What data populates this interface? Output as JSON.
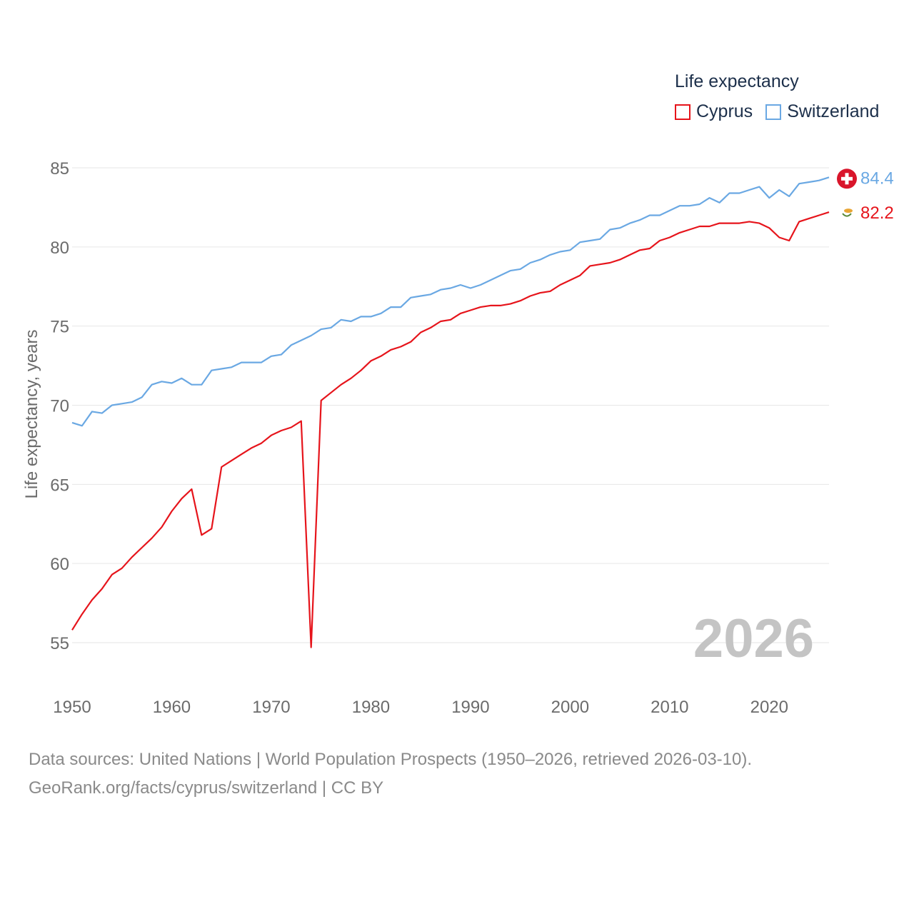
{
  "legend": {
    "title": "Life expectancy",
    "items": [
      {
        "name": "Cyprus",
        "color": "#e6141b"
      },
      {
        "name": "Switzerland",
        "color": "#6aa8e3"
      }
    ]
  },
  "footer": {
    "line1": "Data sources: United Nations | World Population Prospects (1950–2026, retrieved 2026-03-10).",
    "line2": "GeoRank.org/facts/cyprus/switzerland | CC BY"
  },
  "chart_data": {
    "type": "line",
    "title": "Life expectancy",
    "xlabel": "",
    "ylabel": "Life expectancy, years",
    "xlim": [
      1950,
      2026
    ],
    "ylim": [
      53,
      86.5
    ],
    "xticks": [
      1950,
      1960,
      1970,
      1980,
      1990,
      2000,
      2010,
      2020
    ],
    "yticks": [
      55,
      60,
      65,
      70,
      75,
      80,
      85
    ],
    "grid": true,
    "legend_position": "top-right",
    "year_label": "2026",
    "x": [
      1950,
      1951,
      1952,
      1953,
      1954,
      1955,
      1956,
      1957,
      1958,
      1959,
      1960,
      1961,
      1962,
      1963,
      1964,
      1965,
      1966,
      1967,
      1968,
      1969,
      1970,
      1971,
      1972,
      1973,
      1974,
      1975,
      1976,
      1977,
      1978,
      1979,
      1980,
      1981,
      1982,
      1983,
      1984,
      1985,
      1986,
      1987,
      1988,
      1989,
      1990,
      1991,
      1992,
      1993,
      1994,
      1995,
      1996,
      1997,
      1998,
      1999,
      2000,
      2001,
      2002,
      2003,
      2004,
      2005,
      2006,
      2007,
      2008,
      2009,
      2010,
      2011,
      2012,
      2013,
      2014,
      2015,
      2016,
      2017,
      2018,
      2019,
      2020,
      2021,
      2022,
      2023,
      2024,
      2025,
      2026
    ],
    "series": [
      {
        "name": "Cyprus",
        "color": "#e6141b",
        "end_label": "82.2",
        "flag": "cyprus-flag",
        "values": [
          55.8,
          56.8,
          57.7,
          58.4,
          59.3,
          59.7,
          60.4,
          61.0,
          61.6,
          62.3,
          63.3,
          64.1,
          64.7,
          61.8,
          62.2,
          66.1,
          66.5,
          66.9,
          67.3,
          67.6,
          68.1,
          68.4,
          68.6,
          69.0,
          54.7,
          70.3,
          70.8,
          71.3,
          71.7,
          72.2,
          72.8,
          73.1,
          73.5,
          73.7,
          74.0,
          74.6,
          74.9,
          75.3,
          75.4,
          75.8,
          76.0,
          76.2,
          76.3,
          76.3,
          76.4,
          76.6,
          76.9,
          77.1,
          77.2,
          77.6,
          77.9,
          78.2,
          78.8,
          78.9,
          79.0,
          79.2,
          79.5,
          79.8,
          79.9,
          80.4,
          80.6,
          80.9,
          81.1,
          81.3,
          81.3,
          81.5,
          81.5,
          81.5,
          81.6,
          81.5,
          81.2,
          80.6,
          80.4,
          81.6,
          81.8,
          82.0,
          82.2
        ]
      },
      {
        "name": "Switzerland",
        "color": "#6aa8e3",
        "end_label": "84.4",
        "flag": "switzerland-flag",
        "values": [
          68.9,
          68.7,
          69.6,
          69.5,
          70.0,
          70.1,
          70.2,
          70.5,
          71.3,
          71.5,
          71.4,
          71.7,
          71.3,
          71.3,
          72.2,
          72.3,
          72.4,
          72.7,
          72.7,
          72.7,
          73.1,
          73.2,
          73.8,
          74.1,
          74.4,
          74.8,
          74.9,
          75.4,
          75.3,
          75.6,
          75.6,
          75.8,
          76.2,
          76.2,
          76.8,
          76.9,
          77.0,
          77.3,
          77.4,
          77.6,
          77.4,
          77.6,
          77.9,
          78.2,
          78.5,
          78.6,
          79.0,
          79.2,
          79.5,
          79.7,
          79.8,
          80.3,
          80.4,
          80.5,
          81.1,
          81.2,
          81.5,
          81.7,
          82.0,
          82.0,
          82.3,
          82.6,
          82.6,
          82.7,
          83.1,
          82.8,
          83.4,
          83.4,
          83.6,
          83.8,
          83.1,
          83.6,
          83.2,
          84.0,
          84.1,
          84.2,
          84.4
        ]
      }
    ]
  }
}
